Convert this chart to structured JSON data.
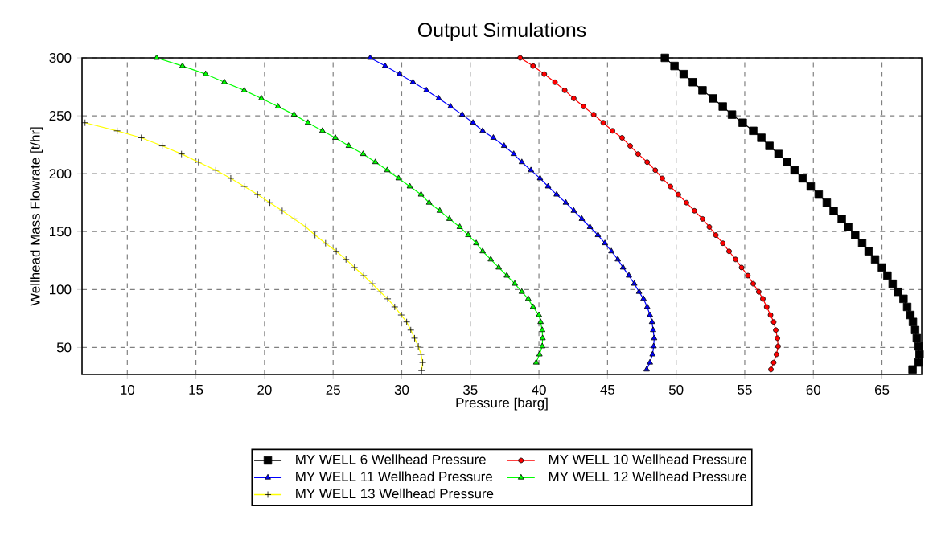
{
  "chart_data": {
    "type": "line",
    "title": "Output Simulations",
    "xlabel": "Pressure [barg]",
    "ylabel": "Wellhead Mass Flowrate [t/hr]",
    "xlim": [
      6.7,
      67.9
    ],
    "ylim": [
      26.7,
      300
    ],
    "xticks": [
      10,
      15,
      20,
      25,
      30,
      35,
      40,
      45,
      50,
      55,
      60,
      65
    ],
    "yticks": [
      50,
      100,
      150,
      200,
      250,
      300
    ],
    "grid": true,
    "legend": "bottom",
    "line_style": "solid",
    "series": [
      {
        "name": "MY WELL 6 Wellhead Pressure",
        "color": "#000000",
        "marker": "square",
        "x": [
          49.18,
          49.88,
          50.55,
          51.22,
          51.92,
          52.69,
          53.4,
          54.07,
          54.85,
          55.62,
          56.21,
          56.8,
          57.46,
          58.08,
          58.63,
          59.22,
          59.81,
          60.39,
          60.98,
          61.48,
          62.07,
          62.54,
          63.05,
          63.56,
          64.03,
          64.5,
          65.0,
          65.4,
          65.78,
          66.17,
          66.57,
          66.84,
          67.07,
          67.26,
          67.42,
          67.54,
          67.66,
          67.74,
          67.66,
          67.23
        ],
        "values": [
          300,
          293,
          286,
          279,
          272,
          265,
          258,
          251,
          244,
          237,
          231,
          224,
          217,
          210,
          203,
          196,
          189,
          182,
          175,
          168,
          161,
          154,
          147,
          140,
          133,
          126,
          119,
          112,
          105,
          98,
          92,
          85,
          78,
          72,
          65,
          58,
          51,
          44,
          37,
          31
        ]
      },
      {
        "name": "MY WELL 10 Wellhead Pressure",
        "color": "#ff0000",
        "marker": "circle",
        "x": [
          38.63,
          39.57,
          40.39,
          41.17,
          41.88,
          42.54,
          43.25,
          43.99,
          44.69,
          45.36,
          46.06,
          46.65,
          47.23,
          47.89,
          48.48,
          48.99,
          49.58,
          50.16,
          50.75,
          51.33,
          51.92,
          52.42,
          52.89,
          53.4,
          53.86,
          54.33,
          54.77,
          55.23,
          55.62,
          56.02,
          56.32,
          56.6,
          56.88,
          57.11,
          57.26,
          57.38,
          57.43,
          57.31,
          57.11,
          56.91
        ],
        "values": [
          300,
          293,
          286,
          279,
          272,
          265,
          258,
          251,
          244,
          237,
          231,
          224,
          217,
          210,
          203,
          196,
          189,
          182,
          175,
          168,
          161,
          154,
          147,
          140,
          133,
          126,
          119,
          112,
          105,
          98,
          92,
          85,
          78,
          72,
          65,
          58,
          51,
          44,
          37,
          31
        ]
      },
      {
        "name": "MY WELL 11 Wellhead Pressure",
        "color": "#0000ff",
        "marker": "triangle",
        "x": [
          27.7,
          28.79,
          29.84,
          30.82,
          31.8,
          32.7,
          33.56,
          34.41,
          35.2,
          35.9,
          36.68,
          37.46,
          38.16,
          38.75,
          39.42,
          40.08,
          40.67,
          41.29,
          41.96,
          42.54,
          43.13,
          43.72,
          44.3,
          44.81,
          45.28,
          45.75,
          46.13,
          46.56,
          46.95,
          47.3,
          47.62,
          47.89,
          48.09,
          48.24,
          48.32,
          48.4,
          48.36,
          48.28,
          48.09,
          47.85
        ],
        "values": [
          300,
          293,
          286,
          279,
          272,
          265,
          258,
          251,
          244,
          237,
          231,
          224,
          217,
          210,
          203,
          196,
          189,
          182,
          175,
          168,
          161,
          154,
          147,
          140,
          133,
          126,
          119,
          112,
          105,
          98,
          92,
          85,
          78,
          72,
          65,
          58,
          51,
          44,
          37,
          31
        ]
      },
      {
        "name": "MY WELL 12 Wellhead Pressure",
        "color": "#00ff00",
        "marker": "triangle-down",
        "x": [
          12.14,
          14.02,
          15.71,
          17.07,
          18.52,
          19.77,
          20.98,
          22.15,
          23.16,
          24.22,
          25.16,
          26.14,
          27.19,
          28.08,
          28.95,
          29.77,
          30.59,
          31.41,
          32.0,
          32.77,
          33.48,
          34.23,
          34.85,
          35.43,
          35.9,
          36.49,
          37.07,
          37.66,
          38.24,
          38.75,
          39.22,
          39.57,
          40.0,
          40.12,
          40.24,
          40.27,
          40.24,
          40.04,
          39.8
        ],
        "values": [
          300,
          293,
          286,
          279,
          272,
          265,
          258,
          251,
          244,
          237,
          231,
          224,
          217,
          210,
          203,
          196,
          189,
          182,
          175,
          168,
          161,
          154,
          147,
          140,
          133,
          126,
          119,
          112,
          105,
          98,
          92,
          85,
          78,
          72,
          65,
          58,
          51,
          44,
          37
        ]
      },
      {
        "name": "MY WELL 13 Wellhead Pressure",
        "color": "#ffff00",
        "marker": "cross",
        "x": [
          6.92,
          9.26,
          11.02,
          12.54,
          13.95,
          15.19,
          16.45,
          17.54,
          18.52,
          19.49,
          20.39,
          21.29,
          22.15,
          23.01,
          23.68,
          24.45,
          25.23,
          25.94,
          26.56,
          27.23,
          27.85,
          28.43,
          28.98,
          29.49,
          29.96,
          30.36,
          30.66,
          30.94,
          31.21,
          31.41,
          31.53,
          31.45
        ],
        "values": [
          244,
          237,
          231,
          224,
          217,
          210,
          203,
          196,
          189,
          182,
          175,
          168,
          161,
          154,
          147,
          140,
          133,
          126,
          119,
          112,
          105,
          98,
          92,
          85,
          78,
          72,
          65,
          58,
          51,
          44,
          37,
          30
        ]
      }
    ]
  }
}
